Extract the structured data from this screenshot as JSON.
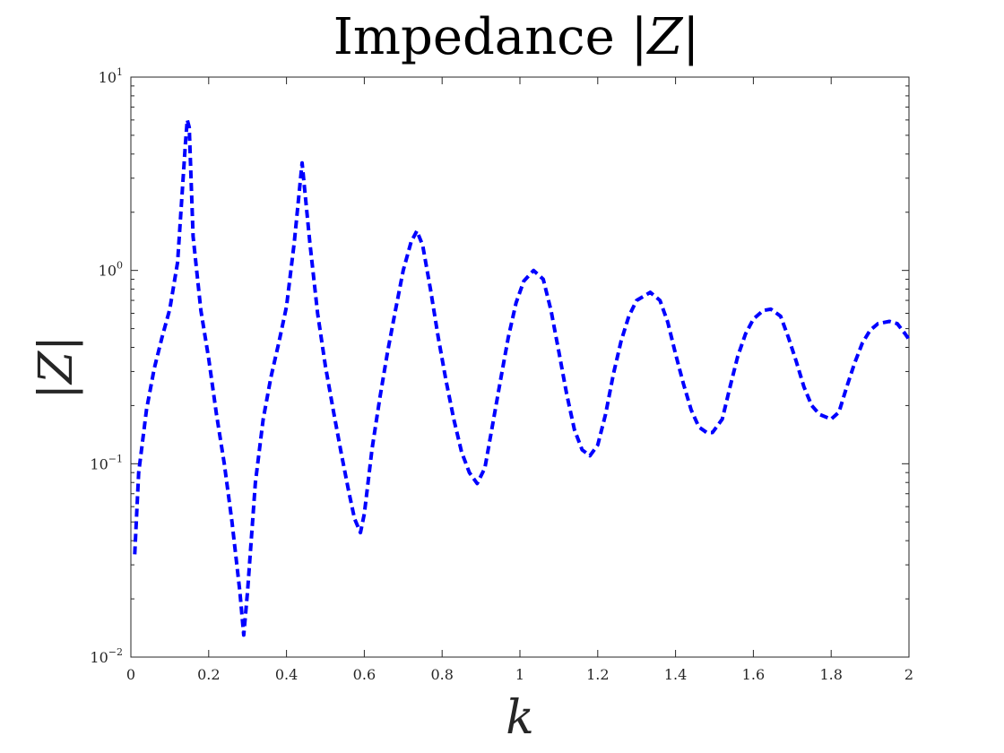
{
  "chart_data": {
    "type": "line",
    "title": "Impedance |Z|",
    "title_parts": {
      "text": "Impedance ",
      "symbol": "|Z|"
    },
    "xlabel": "k",
    "ylabel": "|Z|",
    "xlim": [
      0,
      2
    ],
    "ylim": [
      0.01,
      10
    ],
    "yscale": "log",
    "grid": false,
    "box": true,
    "x_ticks": [
      0,
      0.2,
      0.4,
      0.6,
      0.8,
      1,
      1.2,
      1.4,
      1.6,
      1.8,
      2
    ],
    "x_tick_labels": [
      "0",
      "0.2",
      "0.4",
      "0.6",
      "0.8",
      "1",
      "1.2",
      "1.4",
      "1.6",
      "1.8",
      "2"
    ],
    "y_ticks": [
      {
        "value": 0.01,
        "base": "10",
        "exp": "−2"
      },
      {
        "value": 0.1,
        "base": "10",
        "exp": "−1"
      },
      {
        "value": 1,
        "base": "10",
        "exp": "0"
      },
      {
        "value": 10,
        "base": "10",
        "exp": "1"
      }
    ],
    "series": [
      {
        "color": "#0000ff",
        "line_style": "dashed",
        "points": [
          [
            0.01,
            0.034
          ],
          [
            0.02,
            0.09
          ],
          [
            0.04,
            0.19
          ],
          [
            0.06,
            0.31
          ],
          [
            0.08,
            0.45
          ],
          [
            0.1,
            0.63
          ],
          [
            0.12,
            1.1
          ],
          [
            0.14,
            4.5
          ],
          [
            0.145,
            6.0
          ],
          [
            0.15,
            5.5
          ],
          [
            0.16,
            1.5
          ],
          [
            0.18,
            0.62
          ],
          [
            0.2,
            0.35
          ],
          [
            0.22,
            0.18
          ],
          [
            0.24,
            0.1
          ],
          [
            0.26,
            0.05
          ],
          [
            0.28,
            0.022
          ],
          [
            0.29,
            0.013
          ],
          [
            0.3,
            0.022
          ],
          [
            0.32,
            0.08
          ],
          [
            0.34,
            0.17
          ],
          [
            0.36,
            0.28
          ],
          [
            0.38,
            0.42
          ],
          [
            0.4,
            0.65
          ],
          [
            0.42,
            1.4
          ],
          [
            0.44,
            3.6
          ],
          [
            0.46,
            1.4
          ],
          [
            0.48,
            0.6
          ],
          [
            0.5,
            0.32
          ],
          [
            0.52,
            0.19
          ],
          [
            0.54,
            0.115
          ],
          [
            0.56,
            0.072
          ],
          [
            0.575,
            0.052
          ],
          [
            0.59,
            0.044
          ],
          [
            0.6,
            0.055
          ],
          [
            0.62,
            0.12
          ],
          [
            0.64,
            0.22
          ],
          [
            0.66,
            0.38
          ],
          [
            0.68,
            0.62
          ],
          [
            0.7,
            1.0
          ],
          [
            0.72,
            1.4
          ],
          [
            0.735,
            1.6
          ],
          [
            0.75,
            1.35
          ],
          [
            0.77,
            0.8
          ],
          [
            0.79,
            0.45
          ],
          [
            0.81,
            0.27
          ],
          [
            0.83,
            0.17
          ],
          [
            0.85,
            0.115
          ],
          [
            0.87,
            0.09
          ],
          [
            0.89,
            0.079
          ],
          [
            0.91,
            0.095
          ],
          [
            0.93,
            0.16
          ],
          [
            0.95,
            0.27
          ],
          [
            0.97,
            0.45
          ],
          [
            0.99,
            0.68
          ],
          [
            1.01,
            0.88
          ],
          [
            1.035,
            1.0
          ],
          [
            1.06,
            0.9
          ],
          [
            1.08,
            0.62
          ],
          [
            1.1,
            0.38
          ],
          [
            1.12,
            0.23
          ],
          [
            1.14,
            0.15
          ],
          [
            1.16,
            0.118
          ],
          [
            1.18,
            0.11
          ],
          [
            1.2,
            0.125
          ],
          [
            1.22,
            0.18
          ],
          [
            1.24,
            0.29
          ],
          [
            1.26,
            0.43
          ],
          [
            1.28,
            0.58
          ],
          [
            1.3,
            0.7
          ],
          [
            1.335,
            0.77
          ],
          [
            1.36,
            0.7
          ],
          [
            1.38,
            0.54
          ],
          [
            1.4,
            0.37
          ],
          [
            1.42,
            0.26
          ],
          [
            1.44,
            0.19
          ],
          [
            1.46,
            0.155
          ],
          [
            1.48,
            0.145
          ],
          [
            1.495,
            0.145
          ],
          [
            1.52,
            0.17
          ],
          [
            1.54,
            0.25
          ],
          [
            1.56,
            0.36
          ],
          [
            1.58,
            0.47
          ],
          [
            1.6,
            0.56
          ],
          [
            1.625,
            0.62
          ],
          [
            1.645,
            0.63
          ],
          [
            1.67,
            0.58
          ],
          [
            1.69,
            0.45
          ],
          [
            1.71,
            0.34
          ],
          [
            1.73,
            0.25
          ],
          [
            1.75,
            0.2
          ],
          [
            1.77,
            0.18
          ],
          [
            1.8,
            0.17
          ],
          [
            1.82,
            0.185
          ],
          [
            1.84,
            0.25
          ],
          [
            1.86,
            0.33
          ],
          [
            1.88,
            0.42
          ],
          [
            1.9,
            0.49
          ],
          [
            1.92,
            0.53
          ],
          [
            1.95,
            0.545
          ],
          [
            1.97,
            0.53
          ],
          [
            1.99,
            0.47
          ],
          [
            2.0,
            0.44
          ]
        ]
      }
    ]
  }
}
